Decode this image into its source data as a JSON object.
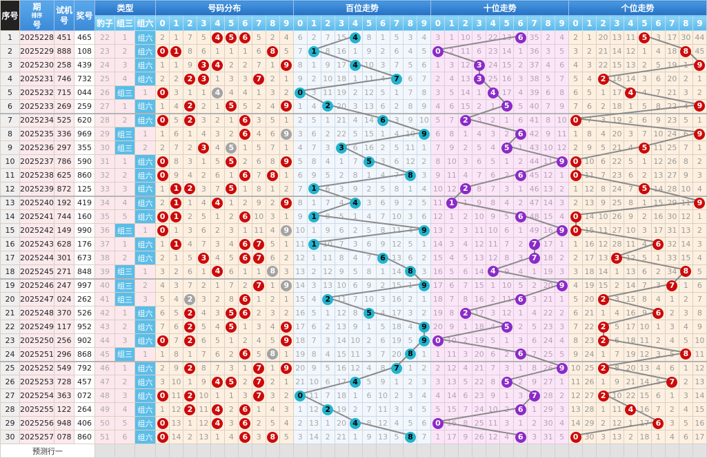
{
  "headers": {
    "seq": "序号",
    "issue_a": "期",
    "issue_b": "号",
    "sort": "排序",
    "test": "试机号",
    "draw": "奖号",
    "type": "类型",
    "distribution": "号码分布",
    "hundreds": "百位走势",
    "tens": "十位走势",
    "units": "个位走势",
    "type_cols": [
      "豹子",
      "组三",
      "组六"
    ],
    "digits": [
      "0",
      "1",
      "2",
      "3",
      "4",
      "5",
      "6",
      "7",
      "8",
      "9"
    ]
  },
  "rows": [
    {
      "seq": "1",
      "issue": "2025228",
      "test": "451",
      "draw": "465"
    },
    {
      "seq": "2",
      "issue": "2025229",
      "test": "888",
      "draw": "108"
    },
    {
      "seq": "3",
      "issue": "2025230",
      "test": "258",
      "draw": "439"
    },
    {
      "seq": "4",
      "issue": "2025231",
      "test": "746",
      "draw": "732"
    },
    {
      "seq": "5",
      "issue": "2025232",
      "test": "715",
      "draw": "044"
    },
    {
      "seq": "6",
      "issue": "2025233",
      "test": "269",
      "draw": "259"
    },
    {
      "seq": "7",
      "issue": "2025234",
      "test": "525",
      "draw": "620"
    },
    {
      "seq": "8",
      "issue": "2025235",
      "test": "336",
      "draw": "969"
    },
    {
      "seq": "9",
      "issue": "2025236",
      "test": "297",
      "draw": "355"
    },
    {
      "seq": "10",
      "issue": "2025237",
      "test": "786",
      "draw": "590"
    },
    {
      "seq": "11",
      "issue": "2025238",
      "test": "625",
      "draw": "860"
    },
    {
      "seq": "12",
      "issue": "2025239",
      "test": "872",
      "draw": "125"
    },
    {
      "seq": "13",
      "issue": "2025240",
      "test": "192",
      "draw": "419"
    },
    {
      "seq": "14",
      "issue": "2025241",
      "test": "744",
      "draw": "160"
    },
    {
      "seq": "15",
      "issue": "2025242",
      "test": "149",
      "draw": "990"
    },
    {
      "seq": "16",
      "issue": "2025243",
      "test": "628",
      "draw": "176"
    },
    {
      "seq": "17",
      "issue": "2025244",
      "test": "301",
      "draw": "673"
    },
    {
      "seq": "18",
      "issue": "2025245",
      "test": "271",
      "draw": "848"
    },
    {
      "seq": "19",
      "issue": "2025246",
      "test": "247",
      "draw": "997"
    },
    {
      "seq": "20",
      "issue": "2025247",
      "test": "024",
      "draw": "262"
    },
    {
      "seq": "21",
      "issue": "2025248",
      "test": "370",
      "draw": "526"
    },
    {
      "seq": "22",
      "issue": "2025249",
      "test": "117",
      "draw": "952"
    },
    {
      "seq": "23",
      "issue": "2025250",
      "test": "256",
      "draw": "902"
    },
    {
      "seq": "24",
      "issue": "2025251",
      "test": "296",
      "draw": "868"
    },
    {
      "seq": "25",
      "issue": "2025252",
      "test": "549",
      "draw": "792"
    },
    {
      "seq": "26",
      "issue": "2025253",
      "test": "728",
      "draw": "457"
    },
    {
      "seq": "27",
      "issue": "2025254",
      "test": "363",
      "draw": "072"
    },
    {
      "seq": "28",
      "issue": "2025255",
      "test": "122",
      "draw": "264"
    },
    {
      "seq": "29",
      "issue": "2025256",
      "test": "948",
      "draw": "406"
    },
    {
      "seq": "30",
      "issue": "2025257",
      "test": "078",
      "draw": "860"
    }
  ],
  "type_labels": {
    "group3": "组三",
    "group6": "组六"
  },
  "row1_omissions": {
    "leopard": 22,
    "group3": 1,
    "distribution": [
      2,
      1,
      7,
      5,
      0,
      0,
      0,
      5,
      2,
      4
    ],
    "hundreds": [
      6,
      2,
      7,
      15,
      0,
      8,
      1,
      5,
      3,
      4
    ],
    "tens": [
      3,
      1,
      10,
      5,
      22,
      13,
      0,
      35,
      2,
      4
    ],
    "units": [
      2,
      1,
      20,
      13,
      11,
      0,
      3,
      17,
      30,
      44
    ]
  },
  "predict_label": "预测行一",
  "colors": {
    "dist_ball": "#cc0a0a",
    "repeat_ball": "#a3a3a3",
    "hundreds_ball": "#23b3cc",
    "tens_ball": "#8a2bc7",
    "units_ball": "#cc0a0a",
    "header": "#2470c4"
  }
}
